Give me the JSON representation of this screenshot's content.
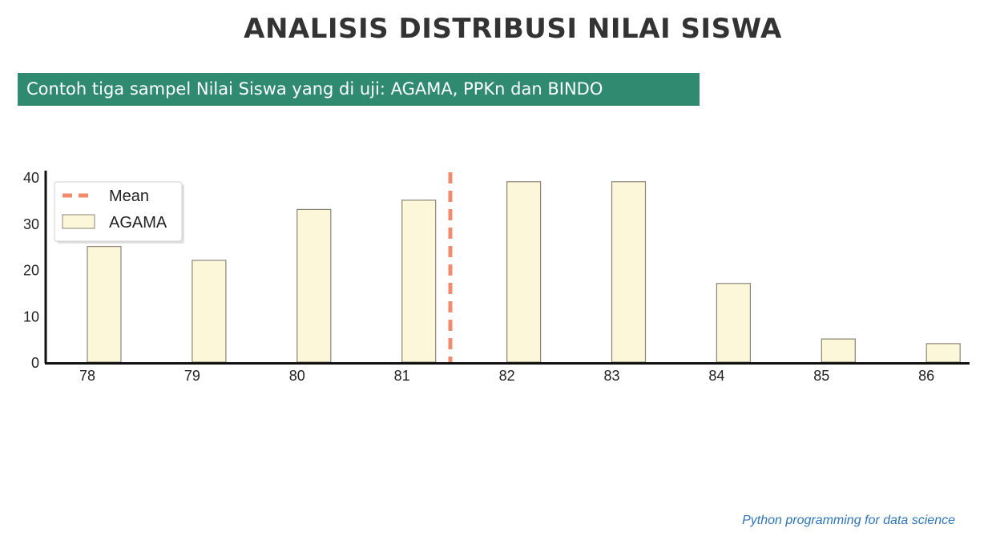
{
  "page": {
    "title": "ANALISIS DISTRIBUSI NILAI SISWA",
    "subtitle": "Contoh tiga sampel Nilai Siswa yang di uji: AGAMA, PPKn dan BINDO",
    "footer": "Python programming for data science"
  },
  "colors": {
    "subtitle_bg": "#2f8a6f",
    "bar_fill": "#fdf7da",
    "bar_stroke": "#8a8478",
    "mean_line": "#f28a6c",
    "footer_text": "#2e75b6"
  },
  "chart_data": {
    "type": "bar",
    "categories": [
      "78",
      "79",
      "80",
      "81",
      "82",
      "83",
      "84",
      "85",
      "86"
    ],
    "series": [
      {
        "name": "AGAMA",
        "values": [
          25,
          22,
          33,
          35,
          39,
          39,
          17,
          5,
          4
        ]
      }
    ],
    "mean": {
      "name": "Mean",
      "value": 81.3
    },
    "yticks": [
      0,
      10,
      20,
      30,
      40
    ],
    "ylim": [
      0,
      41
    ],
    "xlim": [
      78,
      86
    ],
    "grid": false,
    "legend_position": "top-left"
  }
}
